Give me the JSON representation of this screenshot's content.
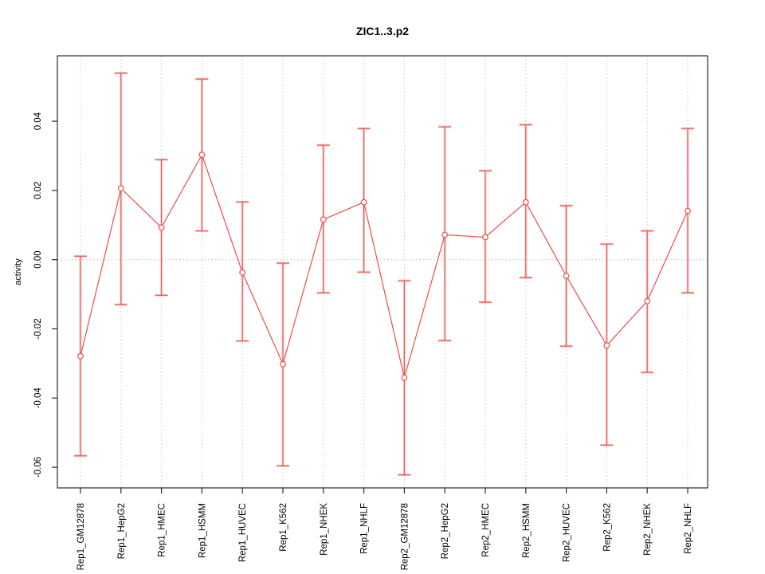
{
  "title": "ZIC1..3.p2",
  "y_axis": {
    "label": "activity",
    "tick_labels": [
      "0.04",
      "0.02",
      "0.00",
      "-0.02",
      "-0.04",
      "-0.06"
    ],
    "tick_values": [
      0.04,
      0.02,
      0.0,
      -0.02,
      -0.04,
      -0.06
    ]
  },
  "chart_data": {
    "type": "line",
    "title": "ZIC1..3.p2",
    "xlabel": "",
    "ylabel": "activity",
    "categories": [
      "Rep1_GM12878",
      "Rep1_HepG2",
      "Rep1_HMEC",
      "Rep1_HSMM",
      "Rep1_HUVEC",
      "Rep1_K562",
      "Rep1_NHEK",
      "Rep1_NHLF",
      "Rep2_GM12878",
      "Rep2_HepG2",
      "Rep2_HMEC",
      "Rep2_HSMM",
      "Rep2_HUVEC",
      "Rep2_K562",
      "Rep2_NHEK",
      "Rep2_NHLF"
    ],
    "series": [
      {
        "name": "activity",
        "values": [
          -0.0279,
          0.0206,
          0.0093,
          0.0303,
          -0.0037,
          -0.0302,
          0.0116,
          0.0166,
          -0.0341,
          0.0072,
          0.0065,
          0.0166,
          -0.0047,
          -0.0248,
          -0.012,
          0.0141
        ],
        "error_high": [
          0.001,
          0.0539,
          0.0289,
          0.0522,
          0.0167,
          -0.001,
          0.0331,
          0.0379,
          -0.0061,
          0.0384,
          0.0257,
          0.039,
          0.0156,
          0.0045,
          0.0083,
          0.0379
        ],
        "error_low": [
          -0.0567,
          -0.013,
          -0.0103,
          0.0083,
          -0.0235,
          -0.0596,
          -0.0096,
          -0.0036,
          -0.0622,
          -0.0234,
          -0.0123,
          -0.0052,
          -0.025,
          -0.0536,
          -0.0326,
          -0.0096
        ]
      }
    ],
    "ylim": [
      -0.066,
      0.059
    ],
    "yticks": [
      0.04,
      0.02,
      0.0,
      -0.02,
      -0.04,
      -0.06
    ],
    "grid": "vertical dotted gridline at each category; dotted horizontal line at y=0",
    "legend_position": "none",
    "marker": "open-circle",
    "colors": {
      "line": "#e8504a",
      "error_bar_halo": "#f4a09b",
      "grid": "#c9c9c9",
      "zero_line": "#bfbfbf",
      "box": "#2b2b2b",
      "text": "#000000"
    }
  }
}
